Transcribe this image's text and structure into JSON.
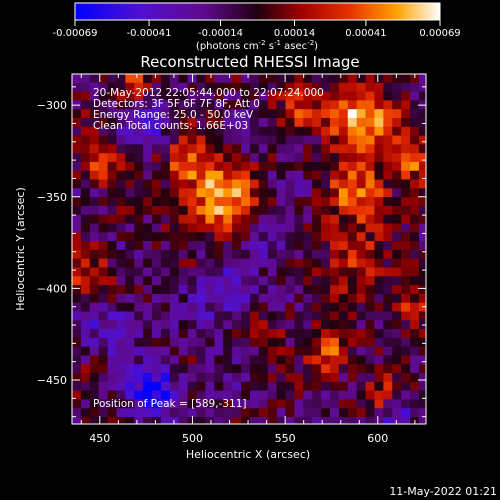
{
  "chart_data": {
    "type": "heatmap",
    "title": "Reconstructed RHESSI Image",
    "xlabel": "Heliocentric X (arcsec)",
    "ylabel": "Heliocentric Y (arcsec)",
    "xlim": [
      435,
      626
    ],
    "ylim": [
      -474,
      -283
    ],
    "xticks": [
      450,
      500,
      550,
      600
    ],
    "yticks": [
      -300,
      -350,
      -400,
      -450
    ],
    "colorbar": {
      "ticks": [
        "-0.00069",
        "-0.00041",
        "-0.00014",
        "0.00014",
        "0.00041",
        "0.00069"
      ],
      "unit_prefix": "(photons cm",
      "unit_sup1": "-2",
      "unit_mid1": " s",
      "unit_sup2": "-1",
      "unit_mid2": " asec",
      "unit_sup3": "-2",
      "unit_suffix": ")",
      "range": [
        -0.00069,
        0.00069
      ]
    },
    "annotations": [
      "20-May-2012 22:05:44.000 to 22:07:24.000",
      "Detectors: 3F 5F 6F 7F 8F, Att 0",
      "Energy Range: 25.0 - 50.0 keV",
      "Clean     Total counts: 1.66E+03"
    ],
    "peak_label": "Position of Peak = [589,-311]",
    "peak": [
      589,
      -311
    ],
    "sources": [
      {
        "x": 590,
        "y": -308,
        "sigma": 13,
        "amp": 1.0
      },
      {
        "x": 515,
        "y": -352,
        "sigma": 14,
        "amp": 0.75
      },
      {
        "x": 498,
        "y": -332,
        "sigma": 10,
        "amp": 0.6
      },
      {
        "x": 592,
        "y": -350,
        "sigma": 12,
        "amp": 0.7
      },
      {
        "x": 585,
        "y": -385,
        "sigma": 11,
        "amp": 0.55
      },
      {
        "x": 575,
        "y": -437,
        "sigma": 8,
        "amp": 0.65
      },
      {
        "x": 620,
        "y": -330,
        "sigma": 9,
        "amp": 0.6
      },
      {
        "x": 450,
        "y": -330,
        "sigma": 9,
        "amp": 0.55
      },
      {
        "x": 445,
        "y": -395,
        "sigma": 10,
        "amp": 0.5
      },
      {
        "x": 558,
        "y": -300,
        "sigma": 8,
        "amp": 0.45
      },
      {
        "x": 540,
        "y": -420,
        "sigma": 10,
        "amp": 0.35
      },
      {
        "x": 615,
        "y": -410,
        "sigma": 9,
        "amp": 0.5
      },
      {
        "x": 470,
        "y": -290,
        "sigma": 8,
        "amp": 0.45
      },
      {
        "x": 600,
        "y": -460,
        "sigma": 8,
        "amp": 0.4
      }
    ],
    "negative_sources": [
      {
        "x": 480,
        "y": -455,
        "sigma": 10,
        "amp": -0.8
      },
      {
        "x": 475,
        "y": -310,
        "sigma": 10,
        "amp": -0.55
      },
      {
        "x": 520,
        "y": -405,
        "sigma": 14,
        "amp": -0.45
      },
      {
        "x": 458,
        "y": -420,
        "sigma": 11,
        "amp": -0.5
      },
      {
        "x": 545,
        "y": -372,
        "sigma": 9,
        "amp": -0.35
      },
      {
        "x": 610,
        "y": -470,
        "sigma": 7,
        "amp": -0.5
      }
    ]
  },
  "footer": {
    "timestamp": "11-May-2022 01:21"
  }
}
